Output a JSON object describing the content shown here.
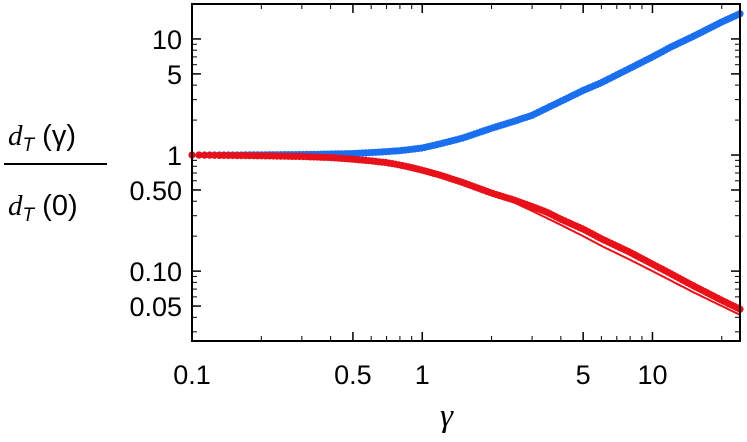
{
  "chart_data": {
    "type": "scatter",
    "xscale": "log",
    "yscale": "log",
    "xlim": [
      0.1,
      24
    ],
    "ylim": [
      0.025,
      20
    ],
    "x_ticks": [
      "0.1",
      "0.5",
      "1",
      "5",
      "10"
    ],
    "x_tick_values": [
      0.1,
      0.5,
      1,
      5,
      10
    ],
    "y_ticks": [
      "0.05",
      "0.10",
      "0.50",
      "1",
      "5",
      "10"
    ],
    "y_tick_values": [
      0.05,
      0.1,
      0.5,
      1,
      5,
      10
    ],
    "xlabel": "γ",
    "ylabel": {
      "numerator": {
        "symbol": "d",
        "subscript": "T",
        "arg": "(γ)"
      },
      "denominator": {
        "symbol": "d",
        "subscript": "T",
        "arg": "(0)"
      }
    },
    "grid": false,
    "legend": "none",
    "series": [
      {
        "style": "points",
        "color": "#1a6fef",
        "x": [
          0.1,
          0.15,
          0.2,
          0.3,
          0.4,
          0.5,
          0.6,
          0.7,
          0.8,
          0.9,
          1.0,
          1.2,
          1.5,
          2.0,
          2.5,
          3.0,
          4.0,
          5.0,
          6.0,
          8.0,
          10.0,
          12.0,
          15.0,
          20.0,
          24.0
        ],
        "y": [
          1.0,
          1.0,
          1.005,
          1.01,
          1.02,
          1.03,
          1.05,
          1.07,
          1.09,
          1.12,
          1.15,
          1.25,
          1.4,
          1.7,
          1.95,
          2.2,
          2.9,
          3.6,
          4.2,
          5.6,
          7.0,
          8.5,
          10.5,
          14.0,
          16.5
        ]
      },
      {
        "style": "points",
        "color": "#e8111a",
        "x": [
          0.1,
          0.15,
          0.2,
          0.3,
          0.4,
          0.5,
          0.6,
          0.7,
          0.8,
          0.9,
          1.0,
          1.2,
          1.5,
          2.0,
          2.5,
          3.0,
          3.5,
          4.0,
          5.0,
          6.0,
          8.0,
          10.0,
          12.0,
          15.0,
          20.0,
          24.0
        ],
        "y": [
          1.0,
          0.99,
          0.985,
          0.97,
          0.95,
          0.92,
          0.89,
          0.86,
          0.82,
          0.78,
          0.74,
          0.67,
          0.58,
          0.47,
          0.41,
          0.36,
          0.32,
          0.28,
          0.23,
          0.19,
          0.145,
          0.115,
          0.095,
          0.075,
          0.056,
          0.047
        ]
      },
      {
        "style": "line",
        "color": "#e8111a",
        "x": [
          0.1,
          0.2,
          0.3,
          0.5,
          0.7,
          1.0,
          1.5,
          2.0,
          3.0,
          4.0,
          5.0,
          6.0,
          8.0,
          10.0,
          15.0,
          20.0,
          24.0
        ],
        "y": [
          1.0,
          0.99,
          0.97,
          0.93,
          0.87,
          0.76,
          0.6,
          0.48,
          0.33,
          0.25,
          0.2,
          0.165,
          0.125,
          0.1,
          0.066,
          0.05,
          0.042
        ]
      }
    ]
  }
}
